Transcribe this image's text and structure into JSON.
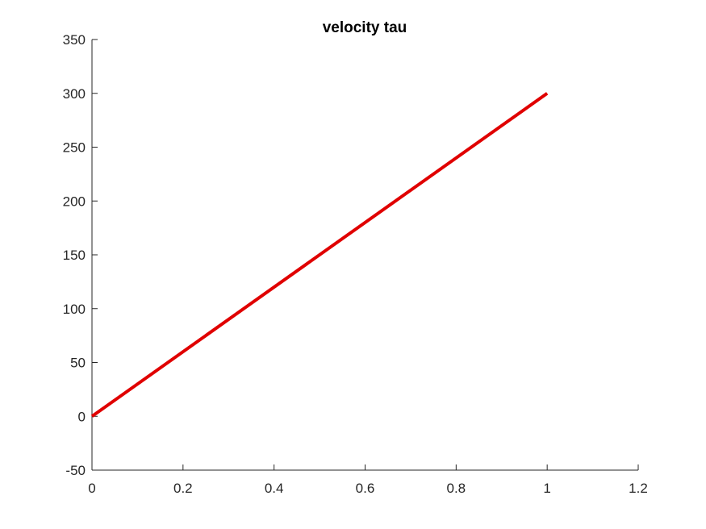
{
  "chart_data": {
    "type": "line",
    "title": "velocity tau",
    "xlabel": "",
    "ylabel": "",
    "xlim": [
      0,
      1.2
    ],
    "ylim": [
      -50,
      350
    ],
    "xticks": [
      0,
      0.2,
      0.4,
      0.6,
      0.8,
      1,
      1.2
    ],
    "yticks": [
      -50,
      0,
      50,
      100,
      150,
      200,
      250,
      300,
      350
    ],
    "grid": false,
    "legend": "none",
    "series": [
      {
        "color": "#e00000",
        "x": [
          0,
          1
        ],
        "y": [
          0,
          300
        ]
      }
    ]
  }
}
